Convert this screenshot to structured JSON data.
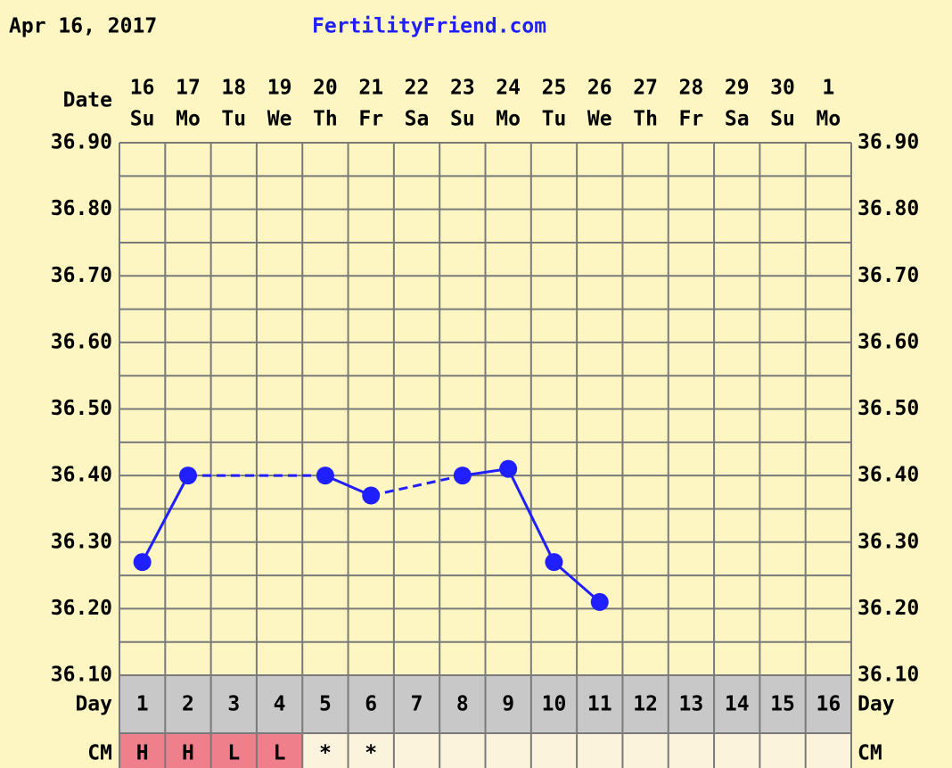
{
  "chart_data": {
    "type": "line",
    "title": "Apr 16, 2017",
    "subtitle": "FertilityFriend.com",
    "date_label": "Date",
    "categories": [
      "16",
      "17",
      "18",
      "19",
      "20",
      "21",
      "22",
      "23",
      "24",
      "25",
      "26",
      "27",
      "28",
      "29",
      "30",
      "1"
    ],
    "weekdays": [
      "Su",
      "Mo",
      "Tu",
      "We",
      "Th",
      "Fr",
      "Sa",
      "Su",
      "Mo",
      "Tu",
      "We",
      "Th",
      "Fr",
      "Sa",
      "Su",
      "Mo"
    ],
    "series": [
      {
        "color": "#1f1fff",
        "values": [
          36.27,
          36.4,
          null,
          null,
          36.4,
          36.37,
          null,
          36.4,
          36.41,
          36.27,
          36.21,
          null,
          null,
          null,
          null,
          null
        ]
      }
    ],
    "ylim": [
      36.1,
      36.9
    ],
    "yticks": [
      {
        "value": 36.1,
        "label": "36.10"
      },
      {
        "value": 36.2,
        "label": "36.20"
      },
      {
        "value": 36.3,
        "label": "36.30"
      },
      {
        "value": 36.4,
        "label": "36.40"
      },
      {
        "value": 36.5,
        "label": "36.50"
      },
      {
        "value": 36.6,
        "label": "36.60"
      },
      {
        "value": 36.7,
        "label": "36.70"
      },
      {
        "value": 36.8,
        "label": "36.80"
      },
      {
        "value": 36.9,
        "label": "36.90"
      }
    ],
    "minor_yticks": [
      36.15,
      36.25,
      36.35,
      36.45,
      36.55,
      36.65,
      36.75,
      36.85
    ],
    "grid": true,
    "day_label": "Day",
    "cycle_days": [
      1,
      2,
      3,
      4,
      5,
      6,
      7,
      8,
      9,
      10,
      11,
      12,
      13,
      14,
      15,
      16
    ],
    "cm_label": "CM",
    "cm": [
      "H",
      "H",
      "L",
      "L",
      "*",
      "*",
      null,
      null,
      null,
      null,
      null,
      null,
      null,
      null,
      null,
      null
    ],
    "cm_color": "#f07f8c"
  }
}
